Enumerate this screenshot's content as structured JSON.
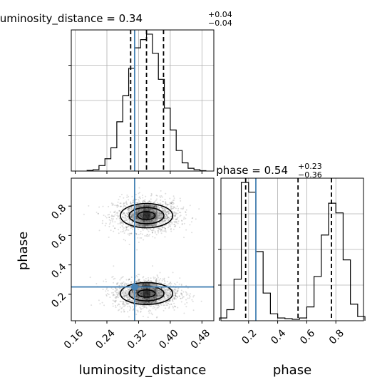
{
  "chart_data": {
    "type": "corner",
    "parameters": [
      "luminosity_distance",
      "phase"
    ],
    "truths": {
      "luminosity_distance": 0.31,
      "phase": 0.25
    },
    "panels": [
      {
        "id": "hist_luminosity_distance",
        "type": "histogram",
        "parameter": "luminosity_distance",
        "title": {
          "main": "luminosity_distance = 0.34",
          "plus": "+0.04",
          "minus": "−0.04"
        },
        "xlim": [
          0.15,
          0.51
        ],
        "ylim": [
          0,
          1
        ],
        "bin_edges": [
          0.19,
          0.205,
          0.22,
          0.235,
          0.25,
          0.265,
          0.28,
          0.295,
          0.31,
          0.325,
          0.34,
          0.355,
          0.37,
          0.385,
          0.4,
          0.415,
          0.43,
          0.445,
          0.46,
          0.475,
          0.49
        ],
        "counts": [
          0.005,
          0.01,
          0.04,
          0.09,
          0.17,
          0.36,
          0.55,
          0.75,
          0.9,
          0.96,
          1.0,
          0.86,
          0.67,
          0.46,
          0.3,
          0.15,
          0.06,
          0.02,
          0.01,
          0.003
        ],
        "quantiles": [
          0.3,
          0.34,
          0.383
        ],
        "truth": 0.31
      },
      {
        "id": "hist_phase",
        "type": "histogram",
        "parameter": "phase",
        "title": {
          "main": "phase = 0.54",
          "plus": "+0.23",
          "minus": "−0.36"
        },
        "xlim": [
          0.01,
          0.99
        ],
        "ylim": [
          0,
          1
        ],
        "bin_edges": [
          0.0,
          0.05,
          0.1,
          0.15,
          0.2,
          0.25,
          0.3,
          0.35,
          0.4,
          0.45,
          0.5,
          0.55,
          0.6,
          0.65,
          0.7,
          0.75,
          0.8,
          0.85,
          0.9,
          0.95,
          1.0
        ],
        "counts": [
          0.02,
          0.08,
          0.3,
          1.0,
          0.93,
          0.5,
          0.2,
          0.05,
          0.02,
          0.015,
          0.01,
          0.02,
          0.1,
          0.32,
          0.62,
          0.85,
          0.78,
          0.44,
          0.12,
          0.03
        ],
        "quantiles": [
          0.18,
          0.54,
          0.77
        ],
        "truth": 0.25
      },
      {
        "id": "joint_luminosity_distance_phase",
        "type": "contour",
        "x_parameter": "luminosity_distance",
        "y_parameter": "phase",
        "xlim": [
          0.15,
          0.51
        ],
        "ylim": [
          0.02,
          0.99
        ],
        "modes": [
          {
            "x": 0.34,
            "y": 0.735,
            "sx": 0.04,
            "sy": 0.055
          },
          {
            "x": 0.34,
            "y": 0.205,
            "sx": 0.04,
            "sy": 0.05
          }
        ],
        "contour_levels": [
          1.0,
          2.0,
          3.0
        ],
        "truth": {
          "x": 0.31,
          "y": 0.25
        }
      }
    ],
    "axes": {
      "luminosity_distance": {
        "label": "luminosity_distance",
        "ticks": [
          0.16,
          0.24,
          0.32,
          0.4,
          0.48
        ],
        "tick_labels": [
          "0.16",
          "0.24",
          "0.32",
          "0.40",
          "0.48"
        ]
      },
      "phase": {
        "label": "phase",
        "ticks": [
          0.2,
          0.4,
          0.6,
          0.8
        ],
        "tick_labels": [
          "0.2",
          "0.4",
          "0.6",
          "0.8"
        ]
      }
    },
    "grid": true,
    "colors": {
      "hist": "#000000",
      "truth": "#4682b4",
      "quantile": "#000000",
      "grid": "#b0b0b0",
      "density": "#000000"
    }
  }
}
